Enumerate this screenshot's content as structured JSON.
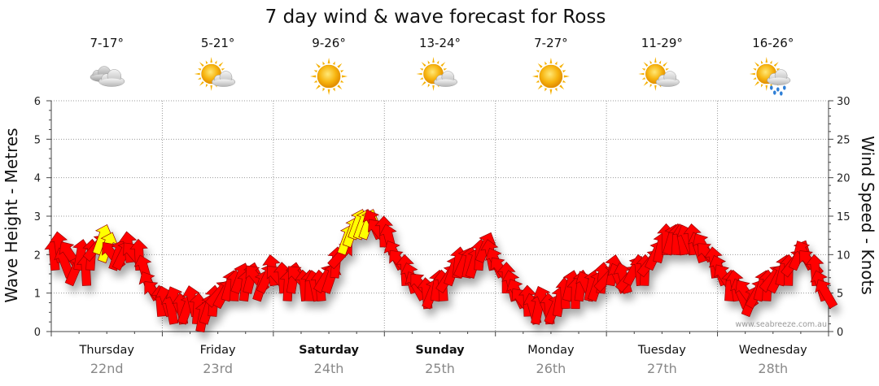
{
  "chart_data": {
    "type": "line",
    "title": "7 day wind & wave forecast for Ross",
    "credit": "www.seabreeze.com.au",
    "y_left": {
      "label": "Wave Height - Metres",
      "ylim": [
        0,
        6
      ],
      "ticks": [
        "0",
        "1",
        "2",
        "3",
        "4",
        "5",
        "6"
      ]
    },
    "y_right": {
      "label": "Wind Speed - Knots",
      "ylim": [
        0,
        30
      ],
      "ticks": [
        "0",
        "5",
        "10",
        "15",
        "20",
        "25",
        "30"
      ]
    },
    "grid": true,
    "days": [
      {
        "name": "Thursday",
        "date": "22nd",
        "temp": "7-17°",
        "icon": "cloudy-icon",
        "bold": false
      },
      {
        "name": "Friday",
        "date": "23rd",
        "temp": "5-21°",
        "icon": "sun-cloud-icon",
        "bold": false
      },
      {
        "name": "Saturday",
        "date": "24th",
        "temp": "9-26°",
        "icon": "sun-icon",
        "bold": true
      },
      {
        "name": "Sunday",
        "date": "25th",
        "temp": "13-24°",
        "icon": "sun-cloud-icon",
        "bold": true
      },
      {
        "name": "Monday",
        "date": "26th",
        "temp": "7-27°",
        "icon": "sun-icon",
        "bold": false
      },
      {
        "name": "Tuesday",
        "date": "27th",
        "temp": "11-29°",
        "icon": "sun-cloud-icon",
        "bold": false
      },
      {
        "name": "Wednesday",
        "date": "28th",
        "temp": "16-26°",
        "icon": "sun-cloud-rain-icon",
        "bold": false
      }
    ],
    "wind_knots": [
      10,
      11,
      9,
      10,
      8,
      10,
      8,
      10,
      11,
      12,
      11,
      10,
      10,
      10,
      11,
      10,
      10,
      8,
      6,
      5,
      4,
      4,
      3,
      4,
      3,
      3,
      4,
      3,
      2,
      3,
      4,
      5,
      5,
      6,
      6,
      7,
      6,
      7,
      7,
      6,
      7,
      8,
      7,
      7,
      6,
      7,
      7,
      6,
      6,
      6,
      6,
      7,
      7,
      9,
      10,
      12,
      13,
      14,
      14,
      14,
      14,
      13,
      13,
      12,
      10,
      9,
      8,
      7,
      6,
      6,
      5,
      5,
      6,
      6,
      7,
      8,
      9,
      9,
      9,
      9,
      10,
      11,
      10,
      9,
      8,
      7,
      6,
      5,
      4,
      4,
      3,
      3,
      4,
      3,
      3,
      4,
      5,
      6,
      5,
      6,
      6,
      6,
      6,
      7,
      7,
      8,
      7,
      7,
      7,
      8,
      8,
      8,
      9,
      10,
      11,
      12,
      12,
      12,
      12,
      12,
      12,
      11,
      11,
      10,
      9,
      8,
      7,
      6,
      6,
      5,
      5,
      4,
      5,
      6,
      6,
      7,
      7,
      8,
      8,
      9,
      10,
      10,
      9,
      8,
      6,
      5
    ],
    "wind_colors": {
      "normal": "#ff0000",
      "strong": "#ffff00",
      "outline": "#990000"
    },
    "yellow_indices": [
      9,
      10,
      55,
      56,
      57,
      58,
      59
    ]
  }
}
